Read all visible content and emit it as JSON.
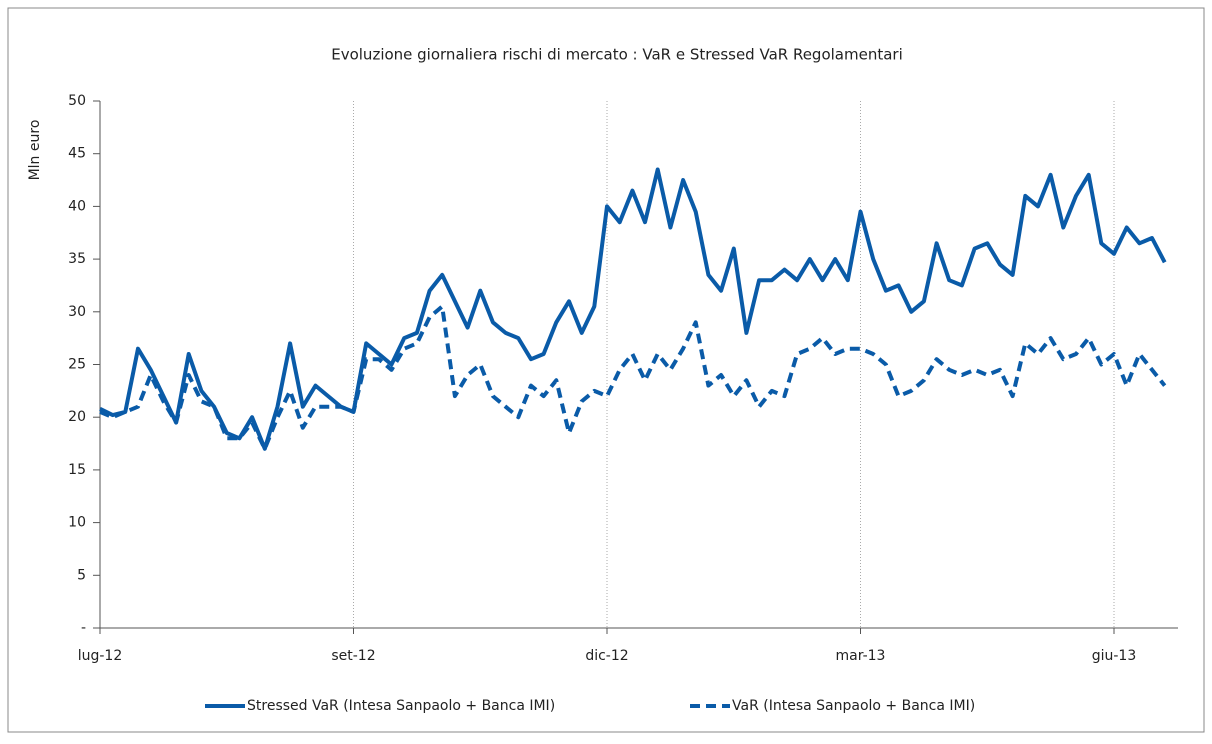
{
  "chart_data": {
    "type": "line",
    "title": "Evoluzione giornaliera rischi di mercato : VaR e Stressed VaR Regolamentari",
    "ylabel": "Mln euro",
    "categories": [
      "lug-12",
      null,
      null,
      null,
      null,
      null,
      null,
      null,
      null,
      null,
      null,
      null,
      null,
      null,
      null,
      null,
      null,
      null,
      null,
      null,
      "set-12",
      null,
      null,
      null,
      null,
      null,
      null,
      null,
      null,
      null,
      null,
      null,
      null,
      null,
      null,
      null,
      null,
      null,
      null,
      null,
      "dic-12",
      null,
      null,
      null,
      null,
      null,
      null,
      null,
      null,
      null,
      null,
      null,
      null,
      null,
      null,
      null,
      null,
      null,
      null,
      null,
      "mar-13",
      null,
      null,
      null,
      null,
      null,
      null,
      null,
      null,
      null,
      null,
      null,
      null,
      null,
      null,
      null,
      null,
      null,
      null,
      null,
      "giu-13",
      null,
      null,
      null,
      null
    ],
    "series": [
      {
        "name": "Stressed VaR (Intesa Sanpaolo + Banca IMI)",
        "color": "#0a5ba8",
        "dash": false,
        "values": [
          20.8,
          20.2,
          20.5,
          26.5,
          24.5,
          22,
          19.5,
          26,
          22.5,
          21,
          18.5,
          18,
          20,
          17,
          21,
          27,
          21,
          23,
          22,
          21,
          20.5,
          27,
          26,
          25,
          27.5,
          28,
          32,
          33.5,
          31,
          28.5,
          32,
          29,
          28,
          27.5,
          25.5,
          26,
          29,
          31,
          28,
          30.5,
          40,
          38.5,
          41.5,
          38.5,
          43.5,
          38,
          42.5,
          39.5,
          33.5,
          32,
          36,
          28,
          33,
          33,
          34,
          33,
          35,
          33,
          35,
          33,
          39.5,
          35,
          32,
          32.5,
          30,
          31,
          36.5,
          33,
          32.5,
          36,
          36.5,
          34.5,
          33.5,
          41,
          40,
          43,
          38,
          41,
          43,
          36.5,
          35.5,
          38,
          36.5,
          37,
          34.7
        ]
      },
      {
        "name": "VaR (Intesa Sanpaolo + Banca IMI)",
        "color": "#0a5ba8",
        "dash": true,
        "values": [
          20.5,
          20,
          20.5,
          21,
          24,
          21.5,
          19.5,
          24,
          21.5,
          21,
          18,
          18,
          19.5,
          17,
          20,
          22.5,
          19,
          21,
          21,
          21,
          20.5,
          25.5,
          25.5,
          24.5,
          26.5,
          27,
          29.5,
          30.5,
          22,
          24,
          25,
          22,
          21,
          20,
          23,
          22,
          23.5,
          18.5,
          21.5,
          22.5,
          22,
          24.5,
          26,
          23.5,
          26,
          24.5,
          26.5,
          29,
          23,
          24,
          22,
          23.5,
          21,
          22.5,
          22,
          26,
          26.5,
          27.5,
          26,
          26.5,
          26.5,
          26,
          25,
          22,
          22.5,
          23.5,
          25.5,
          24.5,
          24,
          24.5,
          24,
          24.5,
          22,
          27,
          26,
          27.5,
          25.5,
          26,
          27.5,
          25,
          26,
          23,
          26,
          24.5,
          23
        ]
      }
    ],
    "ylim": [
      0,
      50
    ],
    "yticks": [
      {
        "value": 0,
        "label": "-"
      },
      5,
      10,
      15,
      20,
      25,
      30,
      35,
      40,
      45,
      50
    ],
    "grid": true
  }
}
